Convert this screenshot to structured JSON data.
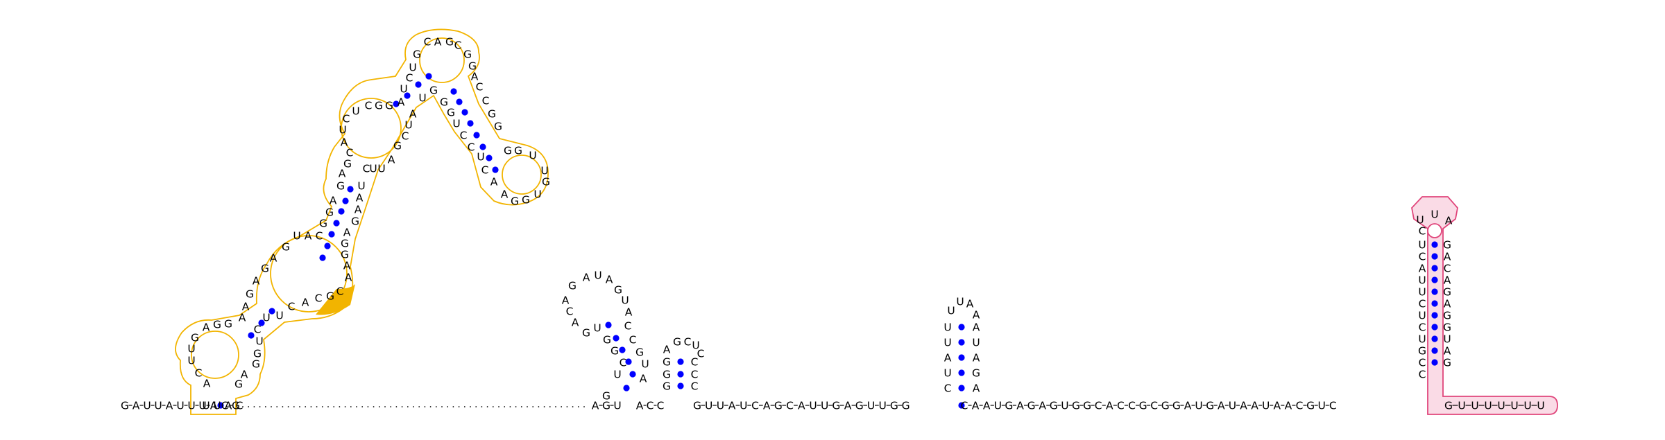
{
  "colors": {
    "background": "#ffffff",
    "nucleotide_text": "#000000",
    "backbone": "#000000",
    "base_pair": "#0000ff",
    "domain_yellow_outline": "#f2b400",
    "domain_yellow_highlight": "#f2b400",
    "domain_pink_outline": "#e0457b",
    "domain_pink_fill": "#fadbe6"
  },
  "sequence": {
    "leading": "GAUUAUUUACG",
    "stem1": "AGU",
    "stem2": "ACC",
    "linker": "GUUAUCAGCAUUGAGUUGG",
    "stem3": "CAAUGAGAGUGGCACCGCGGAUGAUAAUAACGUC",
    "pink_tail": "GUUUUUUU"
  },
  "hairpins": [
    {
      "name": "hairpin-1",
      "stem_5p": "UGGCGAU",
      "loop": "GAUAGUA",
      "stem_3p": "UCCGGG"
    },
    {
      "name": "hairpin-2",
      "stem_5p": "GGCA",
      "loop": "GCU",
      "stem_3p": "CCC"
    },
    {
      "name": "hairpin-3",
      "stem_5p": "CUAUU",
      "loop": "UA",
      "stem_3p": "AUAGA"
    },
    {
      "name": "terminator-hairpin",
      "stem_5p": "CCGUCUCUUACU",
      "loop": "UUA",
      "stem_3p": "GAUGGAGACAG"
    }
  ],
  "multiloop": {
    "stem_a": "ACGUCGGAUACUGG",
    "stem_b": "UCCAGCGGACG",
    "top_loop": "CAGCG",
    "side_loop": "GGUUGGAGCUG"
  }
}
